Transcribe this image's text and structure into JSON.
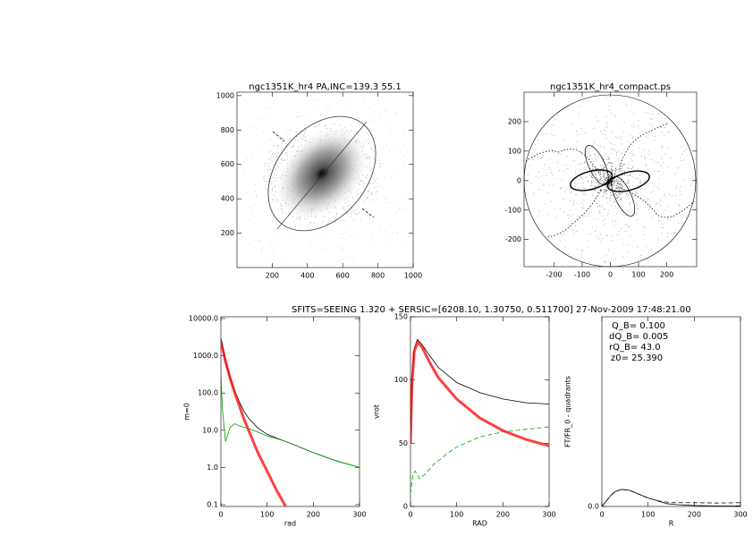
{
  "figure": {
    "title": "SFITS=SEEING 1.320 + SERSIC=[6208.10, 1.30750, 0.511700]  27-Nov-2009 17:48:21.00"
  },
  "chart_data": [
    {
      "type": "image",
      "title": "ngc1351K_hr4 PA,INC=139.3 55.1",
      "xlim": [
        0,
        1000
      ],
      "ylim": [
        0,
        1020
      ],
      "xticks": [
        200,
        400,
        600,
        800,
        1000
      ],
      "yticks": [
        200,
        400,
        600,
        800,
        1000
      ]
    },
    {
      "type": "polar-image",
      "title": "ngc1351K_hr4_compact.ps",
      "xlim": [
        -306,
        306
      ],
      "ylim": [
        -292,
        300
      ],
      "xticks": [
        -200,
        -100,
        0,
        100,
        200
      ],
      "yticks": [
        -200,
        -100,
        0,
        100,
        200
      ]
    },
    {
      "type": "line",
      "xlabel": "rad",
      "ylabel": "m=0",
      "log_y": true,
      "xlim": [
        0,
        300
      ],
      "ylim": [
        0.1,
        10000
      ],
      "xticks": [
        0,
        100,
        200,
        300
      ],
      "yticks": [
        {
          "value": 10000,
          "label": "10000.0"
        },
        {
          "value": 1000,
          "label": "1000.0"
        },
        {
          "value": 100,
          "label": "100.0"
        },
        {
          "value": 10,
          "label": "10.0"
        },
        {
          "value": 1,
          "label": "1.0"
        },
        {
          "value": 0.1,
          "label": "0.1"
        }
      ],
      "series": [
        {
          "color": "#000000",
          "x": [
            0,
            10,
            20,
            30,
            40,
            50,
            60,
            80,
            100,
            120,
            140,
            160,
            200,
            250,
            300
          ],
          "values": [
            2900,
            710,
            265,
            115,
            58,
            32,
            21,
            11.5,
            7.8,
            6.2,
            5,
            4,
            2.5,
            1.5,
            1.0
          ]
        },
        {
          "color": "#ff0000",
          "marker": "x",
          "x": [
            0,
            10,
            20,
            30,
            40,
            50,
            60,
            80,
            100,
            120,
            140
          ],
          "values": [
            2500,
            700,
            250,
            100,
            45,
            20,
            10,
            2.5,
            0.8,
            0.25,
            0.09
          ]
        },
        {
          "color": "#00a000",
          "x": [
            0,
            3,
            10,
            20,
            30,
            40,
            50,
            60,
            80,
            100,
            120,
            140,
            160,
            200,
            250,
            300
          ],
          "values": [
            400,
            40,
            5,
            12,
            15,
            13,
            12,
            11,
            9,
            7,
            6,
            5,
            4,
            2.5,
            1.5,
            1.0
          ]
        }
      ]
    },
    {
      "type": "line",
      "xlabel": "RAD",
      "ylabel": "vrot",
      "xlim": [
        0,
        300
      ],
      "ylim": [
        0,
        150
      ],
      "xticks": [
        0,
        100,
        200,
        300
      ],
      "yticks": [
        0,
        50,
        100,
        150
      ],
      "series": [
        {
          "color": "#000000",
          "x": [
            0,
            3,
            8,
            15,
            25,
            40,
            60,
            100,
            150,
            200,
            250,
            300
          ],
          "values": [
            55,
            100,
            125,
            132,
            128,
            120,
            110,
            98,
            90,
            85,
            82,
            81
          ]
        },
        {
          "color": "#ff0000",
          "marker": "x",
          "x": [
            0,
            3,
            8,
            15,
            25,
            40,
            60,
            100,
            150,
            200,
            250,
            300
          ],
          "values": [
            50,
            95,
            122,
            130,
            126,
            115,
            102,
            85,
            70,
            60,
            53,
            48
          ]
        },
        {
          "color": "#00a000",
          "dash": true,
          "x": [
            0,
            5,
            10,
            20,
            30,
            50,
            80,
            100,
            150,
            200,
            250,
            300
          ],
          "values": [
            10,
            25,
            28,
            22,
            25,
            33,
            42,
            47,
            55,
            59,
            61,
            63
          ]
        }
      ]
    },
    {
      "type": "line",
      "xlabel": "R",
      "ylabel": "FT/FR_0 - quadrants",
      "xlim": [
        0,
        300
      ],
      "ylim": [
        0,
        1
      ],
      "xticks": [
        0,
        100,
        200,
        300
      ],
      "yticks": [
        {
          "value": 0,
          "label": "0.0"
        }
      ],
      "annotations": [
        "Q_B=  0.100",
        "dQ_B=  0.005",
        "rQ_B=  43.0",
        "z0= 25.390"
      ],
      "series": [
        {
          "color": "#000000",
          "x": [
            0,
            10,
            20,
            30,
            43,
            60,
            80,
            100,
            120,
            140,
            160,
            200,
            250,
            300
          ],
          "values": [
            0,
            0.03,
            0.06,
            0.08,
            0.09,
            0.085,
            0.065,
            0.045,
            0.03,
            0.015,
            0.01,
            0.005,
            0.003,
            0.003
          ]
        },
        {
          "color": "#000000",
          "dash": true,
          "x": [
            0,
            10,
            20,
            30,
            43,
            60,
            80,
            100,
            120,
            150,
            200,
            250,
            300
          ],
          "values": [
            0,
            0.03,
            0.06,
            0.08,
            0.09,
            0.085,
            0.065,
            0.045,
            0.03,
            0.02,
            0.02,
            0.018,
            0.02
          ]
        }
      ]
    }
  ]
}
